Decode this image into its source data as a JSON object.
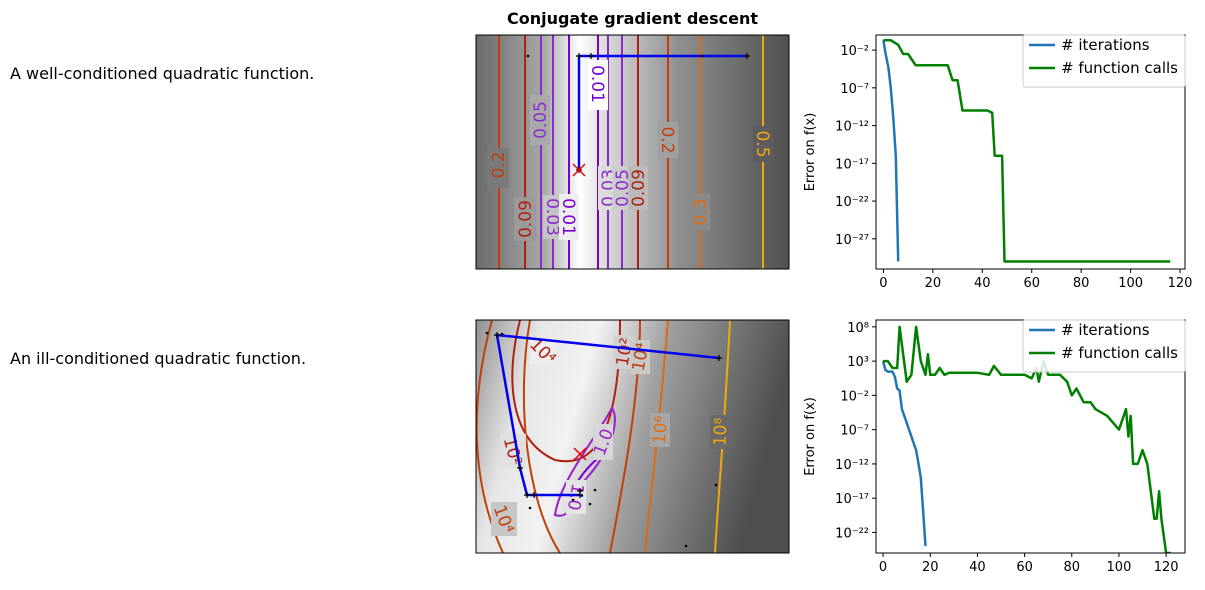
{
  "title": "Conjugate gradient descent",
  "rows": [
    {
      "description": "A well-conditioned quadratic function."
    },
    {
      "description": "An ill-conditioned quadratic function."
    }
  ],
  "colors": {
    "path": "#0000ee",
    "minimum": "#ee0000",
    "iterations": "#1f77b4",
    "function_calls": "#008000"
  },
  "contours_top": {
    "labels": [
      "0.01",
      "0.05",
      "0.2",
      "0.09",
      "0.03",
      "0.01",
      "0.03",
      "0.05",
      "0.09",
      "0.2",
      "0.3",
      "0.5"
    ]
  },
  "contours_bottom": {
    "labels": [
      "10⁴",
      "10²",
      "10⁴",
      "10²",
      "10⁴",
      "10⁶",
      "10⁸",
      "1.0",
      "1.0"
    ]
  },
  "chart_data": [
    {
      "type": "line",
      "ylabel": "Error on f(x)",
      "yscale": "log",
      "xlim": [
        -3,
        122
      ],
      "ylim": [
        1e-31,
        1.0
      ],
      "xticks": [
        0,
        20,
        40,
        60,
        80,
        100,
        120
      ],
      "yticks": [
        1e-27,
        1e-22,
        1e-17,
        1e-12,
        1e-07,
        0.01
      ],
      "ytick_labels": [
        "10⁻²⁷",
        "10⁻²²",
        "10⁻¹⁷",
        "10⁻¹²",
        "10⁻⁷",
        "10⁻²"
      ],
      "legend": "top-right",
      "series": [
        {
          "name": "# iterations",
          "x": [
            0,
            1,
            2,
            3,
            4,
            5,
            6
          ],
          "y": [
            0.2,
            0.002,
            5e-05,
            1e-07,
            1e-11,
            1e-16,
            1e-30
          ]
        },
        {
          "name": "# function calls",
          "x": [
            0,
            3,
            6,
            8,
            10,
            13,
            20,
            26,
            28,
            30,
            32,
            38,
            42,
            44,
            45,
            46,
            48,
            49,
            50,
            116
          ],
          "y": [
            0.2,
            0.2,
            0.05,
            0.003,
            0.003,
            0.0001,
            0.0001,
            0.0001,
            1e-06,
            1e-06,
            1e-10,
            1e-10,
            1e-10,
            5e-11,
            1e-16,
            1e-16,
            1e-16,
            1e-30,
            1e-30,
            1e-30
          ]
        }
      ]
    },
    {
      "type": "line",
      "ylabel": "Error on f(x)",
      "yscale": "log",
      "xlim": [
        -3,
        128
      ],
      "ylim": [
        1e-25,
        1000000000.0
      ],
      "xticks": [
        0,
        20,
        40,
        60,
        80,
        100,
        120
      ],
      "yticks": [
        1e-22,
        1e-17,
        1e-12,
        1e-07,
        0.01,
        1000.0,
        100000000.0
      ],
      "ytick_labels": [
        "10⁻²²",
        "10⁻¹⁷",
        "10⁻¹²",
        "10⁻⁷",
        "10⁻²",
        "10³",
        "10⁸"
      ],
      "legend": "top-right",
      "series": [
        {
          "name": "# iterations",
          "x": [
            0,
            1,
            2,
            3,
            4,
            5,
            6,
            7,
            8,
            9,
            10,
            11,
            12,
            13,
            14,
            15,
            16,
            17,
            18
          ],
          "y": [
            1000,
            50,
            30,
            30,
            30,
            5,
            0.1,
            0.05,
            0.0001,
            1e-05,
            1e-06,
            1e-07,
            1e-08,
            1e-09,
            1e-10,
            1e-12,
            1e-14,
            1e-19,
            1e-24
          ]
        },
        {
          "name": "# function calls",
          "x": [
            0,
            2,
            4,
            6,
            7,
            10,
            12,
            14,
            16,
            18,
            19,
            20,
            22,
            24,
            26,
            28,
            30,
            35,
            40,
            45,
            47,
            50,
            55,
            60,
            63,
            65,
            66,
            68,
            70,
            75,
            78,
            80,
            82,
            85,
            88,
            90,
            95,
            100,
            103,
            104,
            105,
            106,
            108,
            110,
            112,
            115,
            116,
            117,
            118,
            120,
            122
          ],
          "y": [
            1000,
            1000,
            100,
            100,
            100000000.0,
            1,
            10,
            100000000.0,
            1000,
            10,
            10000.0,
            10,
            10,
            100,
            10,
            20,
            20,
            20,
            20,
            10,
            200,
            10,
            10,
            10,
            3,
            100,
            1,
            1000,
            10,
            10,
            1,
            0.01,
            0.1,
            0.001,
            0.001,
            0.0001,
            1e-05,
            1e-07,
            0.0001,
            1e-08,
            1e-05,
            1e-12,
            1e-12,
            1e-10,
            1e-12,
            1e-20,
            1e-20,
            1e-16,
            1e-20,
            1e-25,
            1e-25
          ]
        }
      ]
    }
  ]
}
